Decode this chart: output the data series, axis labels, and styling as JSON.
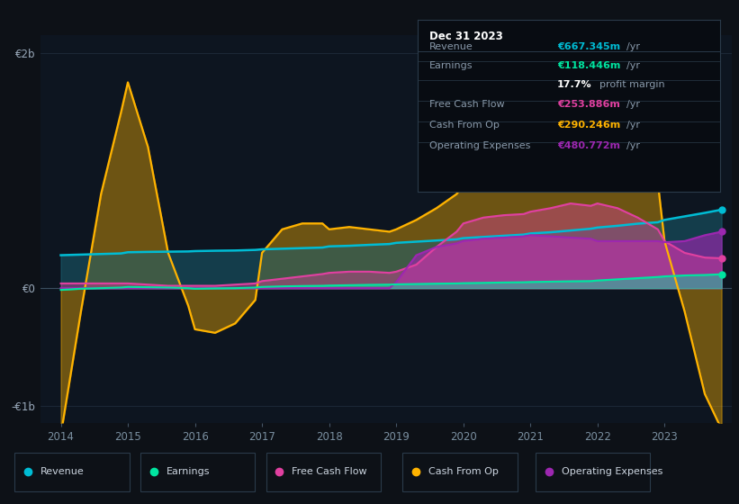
{
  "bg_color": "#0d1117",
  "plot_bg_color": "#0d1520",
  "revenue_color": "#00bcd4",
  "earnings_color": "#00e5a0",
  "fcf_color": "#e040a0",
  "cfo_color": "#ffb300",
  "opex_color": "#9c27b0",
  "ylim": [
    -1.15,
    2.15
  ],
  "ytick_labels": [
    "-€1b",
    "€0",
    "€2b"
  ],
  "ytick_vals": [
    -1.0,
    0.0,
    2.0
  ],
  "info_box": {
    "date": "Dec 31 2023",
    "revenue_val": "€667.345m",
    "earnings_val": "€118.446m",
    "profit_margin": "17.7%",
    "fcf_val": "€253.886m",
    "cfo_val": "€290.246m",
    "opex_val": "€480.772m"
  },
  "legend_items": [
    {
      "label": "Revenue",
      "color": "#00bcd4"
    },
    {
      "label": "Earnings",
      "color": "#00e5a0"
    },
    {
      "label": "Free Cash Flow",
      "color": "#e040a0"
    },
    {
      "label": "Cash From Op",
      "color": "#ffb300"
    },
    {
      "label": "Operating Expenses",
      "color": "#9c27b0"
    }
  ]
}
